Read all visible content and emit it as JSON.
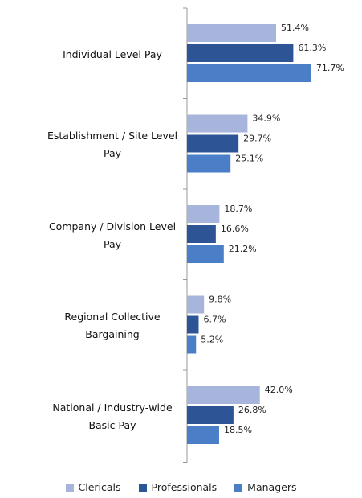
{
  "chart_data": {
    "type": "bar",
    "orientation": "horizontal",
    "categories": [
      "Individual Level Pay",
      "Establishment / Site Level Pay",
      "Company / Division Level Pay",
      "Regional Collective Bargaining",
      "National / Industry-wide Basic Pay"
    ],
    "series": [
      {
        "name": "Clericals",
        "color": "#a7b5dc",
        "values": [
          51.4,
          34.9,
          18.7,
          9.8,
          42.0
        ],
        "value_labels": [
          "51.4%",
          "34.9%",
          "18.7%",
          "9.8%",
          "42.0%"
        ]
      },
      {
        "name": "Professionals",
        "color": "#2d5596",
        "values": [
          61.3,
          29.7,
          16.6,
          6.7,
          26.8
        ],
        "value_labels": [
          "61.3%",
          "29.7%",
          "16.6%",
          "6.7%",
          "26.8%"
        ]
      },
      {
        "name": "Managers",
        "color": "#4a7ec7",
        "values": [
          71.7,
          25.1,
          21.2,
          5.2,
          18.5
        ],
        "value_labels": [
          "71.7%",
          "25.1%",
          "21.2%",
          "5.2%",
          "18.5%"
        ]
      }
    ],
    "legend": "bottom"
  }
}
